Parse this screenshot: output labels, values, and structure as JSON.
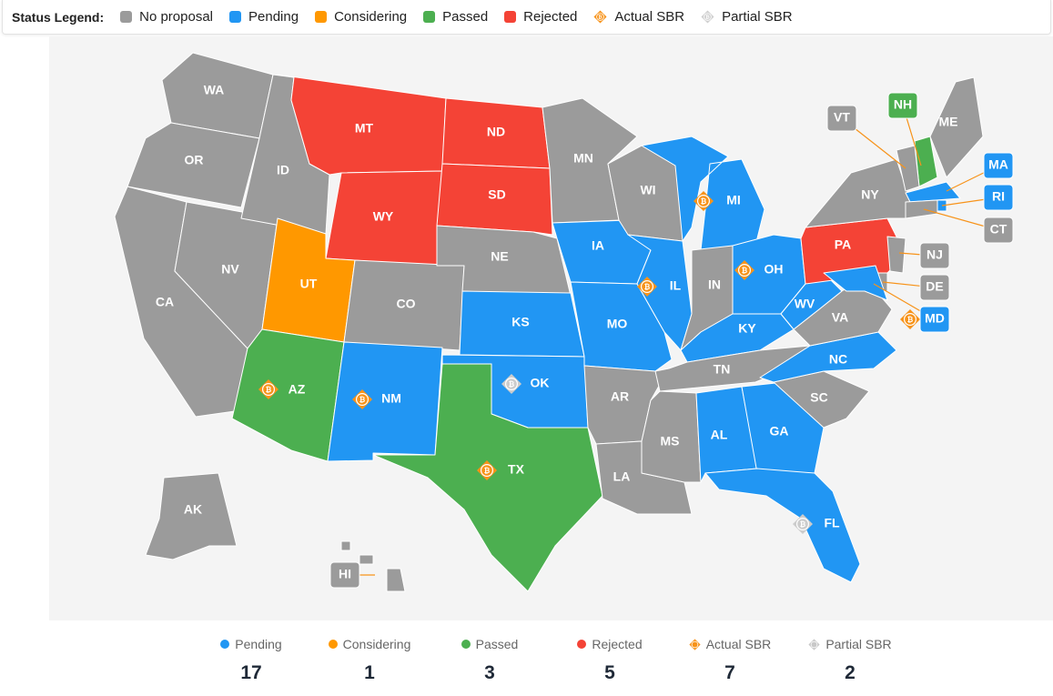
{
  "legend": {
    "title": "Status Legend:",
    "items": [
      {
        "key": "none",
        "label": "No proposal",
        "color": "#9b9b9b",
        "icon": "square"
      },
      {
        "key": "pending",
        "label": "Pending",
        "color": "#2196f3",
        "icon": "square"
      },
      {
        "key": "considering",
        "label": "Considering",
        "color": "#ff9800",
        "icon": "square"
      },
      {
        "key": "passed",
        "label": "Passed",
        "color": "#4caf50",
        "icon": "square"
      },
      {
        "key": "rejected",
        "label": "Rejected",
        "color": "#f44336",
        "icon": "square"
      },
      {
        "key": "actual",
        "label": "Actual SBR",
        "color": "#f7931a",
        "icon": "bitcoin-orange-icon"
      },
      {
        "key": "partial",
        "label": "Partial SBR",
        "color": "#cfcfcf",
        "icon": "bitcoin-gray-icon"
      }
    ]
  },
  "states": [
    {
      "code": "WA",
      "status": "none"
    },
    {
      "code": "OR",
      "status": "none"
    },
    {
      "code": "CA",
      "status": "none"
    },
    {
      "code": "NV",
      "status": "none"
    },
    {
      "code": "ID",
      "status": "none"
    },
    {
      "code": "MT",
      "status": "rejected"
    },
    {
      "code": "WY",
      "status": "rejected"
    },
    {
      "code": "UT",
      "status": "considering"
    },
    {
      "code": "AZ",
      "status": "passed",
      "sbr": "actual"
    },
    {
      "code": "CO",
      "status": "none"
    },
    {
      "code": "NM",
      "status": "pending",
      "sbr": "actual"
    },
    {
      "code": "ND",
      "status": "rejected"
    },
    {
      "code": "SD",
      "status": "rejected"
    },
    {
      "code": "NE",
      "status": "none"
    },
    {
      "code": "KS",
      "status": "pending"
    },
    {
      "code": "OK",
      "status": "pending",
      "sbr": "partial"
    },
    {
      "code": "TX",
      "status": "passed",
      "sbr": "actual"
    },
    {
      "code": "MN",
      "status": "none"
    },
    {
      "code": "IA",
      "status": "pending"
    },
    {
      "code": "MO",
      "status": "pending"
    },
    {
      "code": "AR",
      "status": "none"
    },
    {
      "code": "LA",
      "status": "none"
    },
    {
      "code": "WI",
      "status": "none"
    },
    {
      "code": "IL",
      "status": "pending",
      "sbr": "actual"
    },
    {
      "code": "MI",
      "status": "pending",
      "sbr": "actual"
    },
    {
      "code": "IN",
      "status": "none"
    },
    {
      "code": "OH",
      "status": "pending",
      "sbr": "actual"
    },
    {
      "code": "KY",
      "status": "pending"
    },
    {
      "code": "TN",
      "status": "none"
    },
    {
      "code": "MS",
      "status": "none"
    },
    {
      "code": "AL",
      "status": "pending"
    },
    {
      "code": "GA",
      "status": "pending"
    },
    {
      "code": "FL",
      "status": "pending",
      "sbr": "partial"
    },
    {
      "code": "SC",
      "status": "none"
    },
    {
      "code": "NC",
      "status": "pending"
    },
    {
      "code": "VA",
      "status": "none"
    },
    {
      "code": "WV",
      "status": "pending"
    },
    {
      "code": "PA",
      "status": "rejected"
    },
    {
      "code": "NY",
      "status": "none"
    },
    {
      "code": "ME",
      "status": "none"
    },
    {
      "code": "NH",
      "status": "passed"
    },
    {
      "code": "VT",
      "status": "none"
    },
    {
      "code": "MA",
      "status": "pending"
    },
    {
      "code": "RI",
      "status": "pending"
    },
    {
      "code": "CT",
      "status": "none"
    },
    {
      "code": "NJ",
      "status": "none"
    },
    {
      "code": "DE",
      "status": "none"
    },
    {
      "code": "MD",
      "status": "pending",
      "sbr": "actual"
    },
    {
      "code": "AK",
      "status": "none"
    },
    {
      "code": "HI",
      "status": "none"
    }
  ],
  "stats": [
    {
      "label": "Pending",
      "value": "17",
      "color": "#2196f3",
      "icon": "dot"
    },
    {
      "label": "Considering",
      "value": "1",
      "color": "#ff9800",
      "icon": "dot"
    },
    {
      "label": "Passed",
      "value": "3",
      "color": "#4caf50",
      "icon": "dot"
    },
    {
      "label": "Rejected",
      "value": "5",
      "color": "#f44336",
      "icon": "dot"
    },
    {
      "label": "Actual SBR",
      "value": "7",
      "color": "#f7931a",
      "icon": "bitcoin-orange-icon"
    },
    {
      "label": "Partial SBR",
      "value": "2",
      "color": "#cfcfcf",
      "icon": "bitcoin-gray-icon"
    }
  ]
}
